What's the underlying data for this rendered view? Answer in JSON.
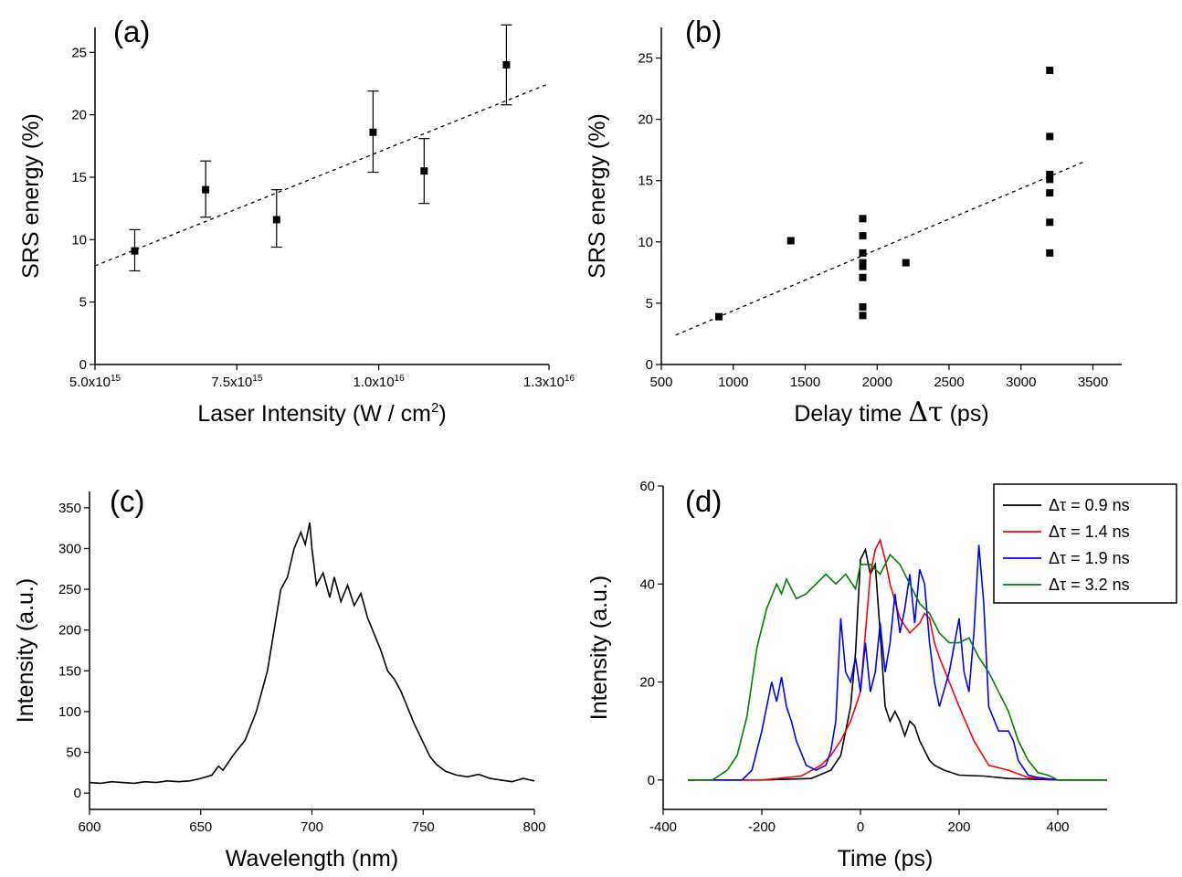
{
  "chart_data": [
    {
      "panel": "(a)",
      "type": "scatter",
      "xlabel": "Laser Intensity (W / cm2)",
      "xlabel_main": "Laser Intensity (W / cm",
      "xlabel_sup": "2",
      "xlabel_end": ")",
      "ylabel": "SRS energy (%)",
      "xlim": [
        5000000000000000.0,
        1.3e+16
      ],
      "ylim": [
        0,
        27
      ],
      "xticks": [
        {
          "v": 5000000000000000.0,
          "mant": "5.0x10",
          "exp": "15"
        },
        {
          "v": 7500000000000000.0,
          "mant": "7.5x10",
          "exp": "15"
        },
        {
          "v": 1e+16,
          "mant": "1.0x10",
          "exp": "16"
        },
        {
          "v": 1.3e+16,
          "mant": "1.3x10",
          "exp": "16"
        }
      ],
      "yticks": [
        0,
        5,
        10,
        15,
        20,
        25
      ],
      "points": [
        {
          "x": 5700000000000000.0,
          "y": 9.1,
          "lo": 7.5,
          "hi": 10.8
        },
        {
          "x": 6950000000000000.0,
          "y": 14.0,
          "lo": 11.8,
          "hi": 16.3
        },
        {
          "x": 8200000000000000.0,
          "y": 11.6,
          "lo": 9.4,
          "hi": 14.0
        },
        {
          "x": 9900000000000000.0,
          "y": 18.6,
          "lo": 15.4,
          "hi": 21.9
        },
        {
          "x": 1.08e+16,
          "y": 15.5,
          "lo": 12.9,
          "hi": 18.1
        },
        {
          "x": 1.225e+16,
          "y": 24.0,
          "lo": 20.8,
          "hi": 27.2
        }
      ],
      "fit": {
        "x": [
          5000000000000000.0,
          1.3e+16
        ],
        "y": [
          7.9,
          22.5
        ]
      }
    },
    {
      "panel": "(b)",
      "type": "scatter",
      "xlabel": "Delay time Δτ (ps)",
      "xlabel_main": "Delay time ",
      "xlabel_greek": "Δτ",
      "xlabel_end": " (ps)",
      "ylabel": "SRS energy (%)",
      "xlim": [
        500,
        3700
      ],
      "ylim": [
        0,
        27.5
      ],
      "xticks": [
        500,
        1000,
        1500,
        2000,
        2500,
        3000,
        3500
      ],
      "yticks": [
        0,
        5,
        10,
        15,
        20,
        25
      ],
      "points": [
        {
          "x": 900,
          "y": 3.9
        },
        {
          "x": 1400,
          "y": 10.1
        },
        {
          "x": 1900,
          "y": 4.0
        },
        {
          "x": 1900,
          "y": 4.7
        },
        {
          "x": 1900,
          "y": 7.1
        },
        {
          "x": 1900,
          "y": 8.0
        },
        {
          "x": 1900,
          "y": 8.3
        },
        {
          "x": 1900,
          "y": 9.1
        },
        {
          "x": 1900,
          "y": 10.5
        },
        {
          "x": 1900,
          "y": 11.9
        },
        {
          "x": 2200,
          "y": 8.3
        },
        {
          "x": 3200,
          "y": 9.1
        },
        {
          "x": 3200,
          "y": 11.6
        },
        {
          "x": 3200,
          "y": 14.0
        },
        {
          "x": 3200,
          "y": 15.1
        },
        {
          "x": 3200,
          "y": 15.5
        },
        {
          "x": 3200,
          "y": 18.6
        },
        {
          "x": 3200,
          "y": 24.0
        }
      ],
      "fit": {
        "x": [
          600,
          3450
        ],
        "y": [
          2.4,
          16.6
        ]
      }
    },
    {
      "panel": "(c)",
      "type": "line",
      "xlabel": "Wavelength (nm)",
      "ylabel": "Intensity (a.u.)",
      "xlim": [
        600,
        800
      ],
      "ylim": [
        -20,
        370
      ],
      "xticks": [
        600,
        650,
        700,
        750,
        800
      ],
      "yticks": [
        0,
        50,
        100,
        150,
        200,
        250,
        300,
        350
      ],
      "x": [
        600,
        605,
        610,
        615,
        620,
        625,
        630,
        635,
        640,
        645,
        650,
        655,
        658,
        660,
        665,
        670,
        675,
        680,
        683,
        686,
        689,
        692,
        695,
        697,
        699,
        700,
        702,
        705,
        708,
        710,
        713,
        716,
        719,
        722,
        725,
        728,
        731,
        734,
        737,
        740,
        743,
        746,
        750,
        753,
        756,
        760,
        765,
        770,
        775,
        780,
        785,
        790,
        795,
        800
      ],
      "y": [
        13,
        12,
        14,
        13,
        12,
        14,
        13,
        15,
        14,
        15,
        18,
        22,
        33,
        28,
        48,
        65,
        100,
        150,
        200,
        250,
        265,
        300,
        320,
        305,
        332,
        300,
        255,
        270,
        240,
        265,
        235,
        255,
        230,
        245,
        215,
        195,
        175,
        150,
        140,
        125,
        105,
        85,
        62,
        45,
        35,
        27,
        22,
        20,
        23,
        18,
        16,
        14,
        18,
        15
      ]
    },
    {
      "panel": "(d)",
      "type": "line",
      "xlabel": "Time (ps)",
      "ylabel": "Intensity (a.u.)",
      "xlim": [
        -400,
        500
      ],
      "ylim": [
        -6,
        60
      ],
      "xticks": [
        -400,
        -200,
        0,
        200,
        400
      ],
      "yticks": [
        0,
        20,
        40,
        60
      ],
      "legend": "top-right",
      "series": [
        {
          "name": "Δτ = 0.9 ns",
          "color": "#000000",
          "x": [
            -350,
            -200,
            -100,
            -60,
            -40,
            -30,
            -20,
            -10,
            0,
            10,
            20,
            30,
            40,
            50,
            60,
            70,
            80,
            90,
            100,
            110,
            120,
            130,
            140,
            150,
            170,
            200,
            250,
            300,
            400,
            500
          ],
          "y": [
            0,
            0,
            0.3,
            2,
            5,
            10,
            15,
            26,
            45,
            47,
            42,
            44,
            30,
            15,
            12,
            14,
            12,
            9,
            12,
            11,
            8,
            6,
            4,
            3,
            2,
            1,
            0.8,
            0.3,
            0,
            0
          ]
        },
        {
          "name": "Δτ = 1.4 ns",
          "color": "#ff0000",
          "x": [
            -350,
            -200,
            -120,
            -80,
            -60,
            -40,
            -20,
            0,
            10,
            20,
            30,
            40,
            50,
            60,
            80,
            100,
            120,
            130,
            140,
            150,
            160,
            180,
            200,
            230,
            260,
            300,
            340,
            400,
            500
          ],
          "y": [
            0,
            0,
            0.8,
            3,
            5,
            8,
            12,
            18,
            30,
            42,
            47,
            49,
            45,
            40,
            33,
            30,
            32,
            34,
            33,
            28,
            25,
            20,
            15,
            8,
            3,
            2,
            0.5,
            0,
            0
          ]
        },
        {
          "name": "Δτ = 1.9 ns",
          "color": "#0000ff",
          "x": [
            -350,
            -240,
            -220,
            -200,
            -180,
            -170,
            -160,
            -150,
            -140,
            -130,
            -110,
            -90,
            -70,
            -60,
            -50,
            -40,
            -30,
            -20,
            -10,
            0,
            10,
            20,
            30,
            40,
            50,
            60,
            70,
            80,
            90,
            100,
            110,
            120,
            130,
            140,
            150,
            160,
            180,
            200,
            210,
            220,
            230,
            240,
            250,
            260,
            280,
            300,
            310,
            320,
            340,
            360,
            400,
            500
          ],
          "y": [
            0,
            0,
            2,
            10,
            20,
            16,
            21,
            15,
            12,
            8,
            3,
            2,
            3,
            6,
            12,
            33,
            22,
            20,
            25,
            18,
            28,
            18,
            22,
            32,
            22,
            28,
            38,
            30,
            35,
            42,
            32,
            43,
            40,
            28,
            20,
            15,
            22,
            33,
            22,
            18,
            30,
            48,
            36,
            15,
            10,
            10,
            8,
            4,
            1,
            0.5,
            0,
            0
          ]
        },
        {
          "name": "Δτ = 3.2 ns",
          "color": "#008000",
          "x": [
            -350,
            -300,
            -270,
            -250,
            -230,
            -210,
            -190,
            -170,
            -160,
            -150,
            -130,
            -110,
            -90,
            -70,
            -50,
            -30,
            -10,
            0,
            20,
            40,
            60,
            80,
            100,
            120,
            140,
            160,
            180,
            200,
            220,
            240,
            260,
            280,
            300,
            320,
            340,
            360,
            380,
            400,
            500
          ],
          "y": [
            0,
            0,
            2,
            5,
            13,
            27,
            35,
            40,
            38,
            41,
            37,
            38,
            40,
            42,
            40,
            42,
            39,
            44,
            44,
            42,
            46,
            44,
            40,
            36,
            34,
            30,
            28,
            28,
            29,
            25,
            22,
            18,
            14,
            8,
            4,
            1.5,
            1,
            0,
            0
          ]
        }
      ]
    }
  ]
}
